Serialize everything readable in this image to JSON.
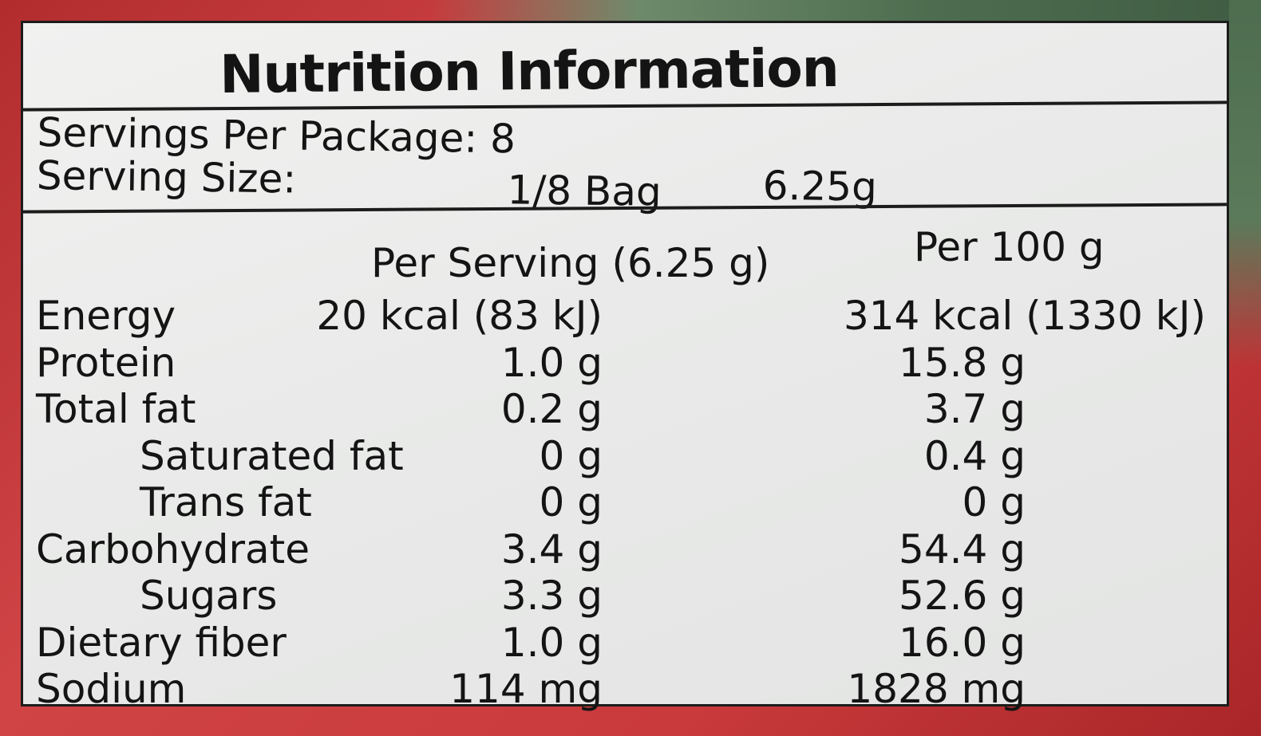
{
  "title": "Nutrition Information",
  "servings_per_package_label": "Servings Per Package:",
  "servings_per_package_value": "8",
  "serving_size_label": "Serving Size:",
  "serving_size_portion": "1/8 Bag",
  "serving_size_weight": "6.25g",
  "columns": {
    "per_serving": "Per Serving (6.25 g)",
    "per_100g": "Per 100 g"
  },
  "rows": [
    {
      "name": "Energy",
      "per_serving": "20 kcal (83 kJ)",
      "per_100g": "314 kcal (1330 kJ)",
      "indent": false
    },
    {
      "name": "Protein",
      "per_serving": "1.0 g",
      "per_100g": "15.8 g",
      "indent": false
    },
    {
      "name": "Total fat",
      "per_serving": "0.2 g",
      "per_100g": "3.7 g",
      "indent": false
    },
    {
      "name": "Saturated fat",
      "per_serving": "0 g",
      "per_100g": "0.4 g",
      "indent": true
    },
    {
      "name": "Trans fat",
      "per_serving": "0 g",
      "per_100g": "0 g",
      "indent": true
    },
    {
      "name": "Carbohydrate",
      "per_serving": "3.4 g",
      "per_100g": "54.4 g",
      "indent": false
    },
    {
      "name": "Sugars",
      "per_serving": "3.3 g",
      "per_100g": "52.6 g",
      "indent": true
    },
    {
      "name": "Dietary fiber",
      "per_serving": "1.0 g",
      "per_100g": "16.0 g",
      "indent": false
    },
    {
      "name": "Sodium",
      "per_serving": "114 mg",
      "per_100g": "1828 mg",
      "indent": false
    }
  ],
  "colors": {
    "package_red": "#c43a3a",
    "label_background": "#ebebea",
    "ink": "#141414",
    "foliage": "#4e6d50"
  }
}
